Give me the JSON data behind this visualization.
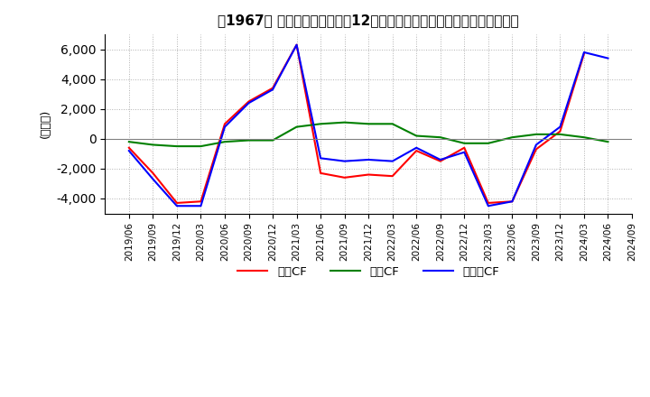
{
  "title": "　1967、 キャッシュフローの12か月移動合計の対前年同期増減額の推移",
  "title_bracket": "　1967、",
  "ylabel": "(百万円)",
  "ylim": [
    -5000,
    7000
  ],
  "yticks": [
    -4000,
    -2000,
    0,
    2000,
    4000,
    6000
  ],
  "dates": [
    "2019/06",
    "2019/09",
    "2019/12",
    "2020/03",
    "2020/06",
    "2020/09",
    "2020/12",
    "2021/03",
    "2021/06",
    "2021/09",
    "2021/12",
    "2022/03",
    "2022/06",
    "2022/09",
    "2022/12",
    "2023/03",
    "2023/06",
    "2023/09",
    "2023/12",
    "2024/03",
    "2024/06",
    "2024/09"
  ],
  "operating_cf": [
    -600,
    -2300,
    -4300,
    -4200,
    1000,
    2500,
    3400,
    6300,
    -2300,
    -2600,
    -2400,
    -2500,
    -800,
    -1500,
    -600,
    -4300,
    -4200,
    -700,
    500,
    5700,
    null,
    null
  ],
  "investing_cf": [
    -200,
    -400,
    -500,
    -500,
    -200,
    -100,
    -100,
    800,
    1000,
    1100,
    1000,
    1000,
    200,
    100,
    -300,
    -300,
    100,
    300,
    300,
    100,
    -200,
    null
  ],
  "free_cf": [
    -800,
    -2700,
    -4500,
    -4500,
    800,
    2400,
    3300,
    6300,
    -1300,
    -1500,
    -1400,
    -1500,
    -600,
    -1400,
    -900,
    -4500,
    -4200,
    -400,
    800,
    5800,
    5400,
    null
  ],
  "operating_color": "#ff0000",
  "investing_color": "#008000",
  "free_cf_color": "#0000ff",
  "background_color": "#ffffff",
  "grid_color": "#b0b0b0",
  "title_fontsize": 11,
  "legend_labels": [
    "営業CF",
    "投資CF",
    "フリーCF"
  ]
}
